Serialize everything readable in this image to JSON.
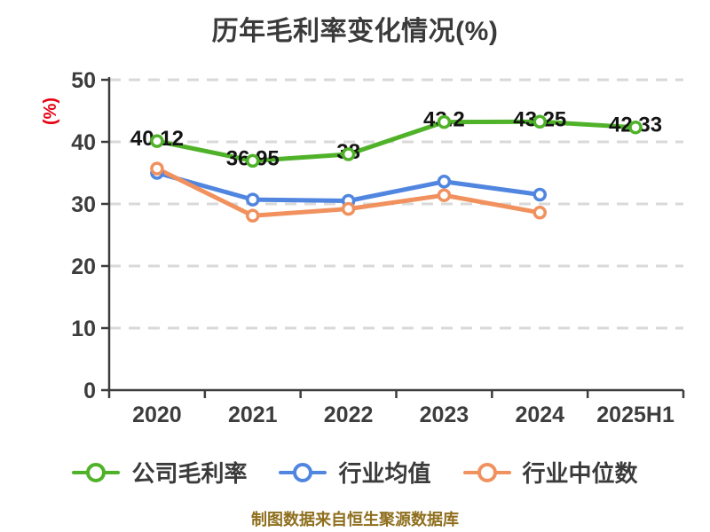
{
  "title": "历年毛利率变化情况(%)",
  "y_axis_unit": "(%)",
  "caption": "制图数据来自恒生聚源数据库",
  "colors": {
    "company": "#4fb229",
    "industry_avg": "#5085e0",
    "industry_median": "#f0915e",
    "axis": "#3d3d3d",
    "grid": "#d9d9d9",
    "title_text": "#3a3a3a",
    "data_label": "#141414",
    "unit_label": "#e60012",
    "caption_text": "#8f6f1e",
    "background": "#ffffff"
  },
  "chart_data": {
    "type": "line",
    "title": "历年毛利率变化情况(%)",
    "categories": [
      "2020",
      "2021",
      "2022",
      "2023",
      "2024",
      "2025H1"
    ],
    "series": [
      {
        "name": "公司毛利率",
        "color_key": "company",
        "values": [
          40.12,
          36.95,
          38,
          43.2,
          43.25,
          42.33
        ],
        "labels": [
          "40.12",
          "36.95",
          "38",
          "43.2",
          "43.25",
          "42.33"
        ],
        "show_labels": true
      },
      {
        "name": "行业均值",
        "color_key": "industry_avg",
        "values": [
          35.0,
          30.7,
          30.5,
          33.6,
          31.5,
          null
        ],
        "labels": [],
        "show_labels": false
      },
      {
        "name": "行业中位数",
        "color_key": "industry_median",
        "values": [
          35.7,
          28.1,
          29.2,
          31.4,
          28.6,
          null
        ],
        "labels": [],
        "show_labels": false
      }
    ],
    "xlabel": "",
    "ylabel": "(%)",
    "ylim": [
      0,
      50
    ],
    "yticks": [
      0,
      10,
      20,
      30,
      40,
      50
    ],
    "grid": "horizontal-dashed",
    "legend_position": "bottom",
    "marker": "circle-white-fill"
  }
}
